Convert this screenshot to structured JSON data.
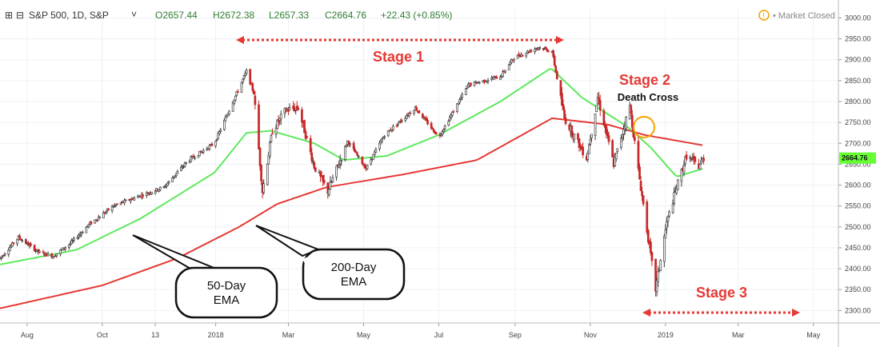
{
  "header": {
    "symbol": "S&P 500, 1D, S&P",
    "open": "O2657.44",
    "high": "H2672.38",
    "low": "L2657.33",
    "close": "C2664.76",
    "change": "+22.43 (+0.85%)",
    "market_status": "Market Closed"
  },
  "colors": {
    "up": "#3c3c3c",
    "down": "#c62828",
    "ema50": "#5ee85e",
    "ema200": "#e53935",
    "annotation": "#e53935",
    "last_price_badge": "#66ff33",
    "circle": "#f4a300"
  },
  "chart_data": {
    "type": "candlestick",
    "title": "S&P 500, 1D, S&P",
    "ylim": [
      2270,
      3020
    ],
    "yticks": [
      3000,
      2950,
      2900,
      2850,
      2800,
      2750,
      2700,
      2650,
      2600,
      2550,
      2500,
      2450,
      2400,
      2350,
      2300
    ],
    "ytick_labels": [
      "3000.00",
      "2950.00",
      "2900.00",
      "2850.00",
      "2800.00",
      "2750.00",
      "2700.00",
      "2650.00",
      "2600.00",
      "2550.00",
      "2500.00",
      "2450.00",
      "2400.00",
      "2350.00",
      "2300.00"
    ],
    "xtick_labels": [
      "Aug",
      "Oct",
      "13",
      "2018",
      "Mar",
      "May",
      "Jul",
      "Sep",
      "Nov",
      "2019",
      "Mar",
      "May"
    ],
    "xtick_dates": [
      "2017-08-01",
      "2017-10-01",
      "2017-11-13",
      "2018-01-01",
      "2018-03-01",
      "2018-05-01",
      "2018-07-01",
      "2018-09-01",
      "2018-11-01",
      "2019-01-01",
      "2019-03-01",
      "2019-05-01"
    ],
    "last_price": 2664.76,
    "last_price_label": "2664.76",
    "price_path": [
      [
        "2017-07-10",
        2425
      ],
      [
        "2017-07-25",
        2475
      ],
      [
        "2017-08-10",
        2440
      ],
      [
        "2017-08-22",
        2430
      ],
      [
        "2017-09-05",
        2460
      ],
      [
        "2017-09-20",
        2505
      ],
      [
        "2017-10-10",
        2550
      ],
      [
        "2017-11-01",
        2575
      ],
      [
        "2017-11-20",
        2595
      ],
      [
        "2017-12-10",
        2660
      ],
      [
        "2017-12-31",
        2700
      ],
      [
        "2018-01-15",
        2800
      ],
      [
        "2018-01-26",
        2872
      ],
      [
        "2018-02-01",
        2820
      ],
      [
        "2018-02-08",
        2585
      ],
      [
        "2018-02-16",
        2730
      ],
      [
        "2018-02-27",
        2780
      ],
      [
        "2018-03-09",
        2785
      ],
      [
        "2018-03-22",
        2645
      ],
      [
        "2018-04-02",
        2585
      ],
      [
        "2018-04-18",
        2705
      ],
      [
        "2018-05-03",
        2640
      ],
      [
        "2018-05-18",
        2720
      ],
      [
        "2018-06-12",
        2785
      ],
      [
        "2018-07-01",
        2715
      ],
      [
        "2018-07-25",
        2840
      ],
      [
        "2018-08-20",
        2860
      ],
      [
        "2018-08-31",
        2905
      ],
      [
        "2018-09-20",
        2930
      ],
      [
        "2018-10-01",
        2920
      ],
      [
        "2018-10-11",
        2760
      ],
      [
        "2018-10-29",
        2665
      ],
      [
        "2018-11-07",
        2810
      ],
      [
        "2018-11-20",
        2650
      ],
      [
        "2018-12-03",
        2790
      ],
      [
        "2018-12-10",
        2635
      ],
      [
        "2018-12-24",
        2350
      ],
      [
        "2019-01-02",
        2510
      ],
      [
        "2019-01-10",
        2595
      ],
      [
        "2019-01-18",
        2670
      ],
      [
        "2019-01-28",
        2645
      ],
      [
        "2019-02-01",
        2664.76
      ]
    ],
    "ema50": [
      [
        "2017-07-10",
        2410
      ],
      [
        "2017-09-10",
        2445
      ],
      [
        "2017-11-01",
        2520
      ],
      [
        "2017-12-31",
        2630
      ],
      [
        "2018-01-26",
        2725
      ],
      [
        "2018-02-15",
        2730
      ],
      [
        "2018-03-22",
        2700
      ],
      [
        "2018-04-15",
        2660
      ],
      [
        "2018-05-20",
        2670
      ],
      [
        "2018-07-01",
        2720
      ],
      [
        "2018-08-20",
        2800
      ],
      [
        "2018-09-30",
        2880
      ],
      [
        "2018-10-25",
        2810
      ],
      [
        "2018-12-01",
        2740
      ],
      [
        "2018-12-20",
        2690
      ],
      [
        "2019-01-10",
        2620
      ],
      [
        "2019-02-01",
        2640
      ]
    ],
    "ema200": [
      [
        "2017-07-10",
        2305
      ],
      [
        "2017-10-01",
        2360
      ],
      [
        "2017-12-01",
        2425
      ],
      [
        "2018-01-20",
        2500
      ],
      [
        "2018-02-20",
        2555
      ],
      [
        "2018-04-01",
        2595
      ],
      [
        "2018-06-01",
        2625
      ],
      [
        "2018-08-01",
        2660
      ],
      [
        "2018-10-01",
        2760
      ],
      [
        "2018-11-15",
        2745
      ],
      [
        "2018-12-15",
        2720
      ],
      [
        "2019-02-01",
        2695
      ]
    ],
    "annotations": [
      {
        "id": "stage1",
        "text": "Stage 1"
      },
      {
        "id": "stage2",
        "text": "Stage 2"
      },
      {
        "id": "death_cross",
        "text": "Death Cross"
      },
      {
        "id": "stage3",
        "text": "Stage 3"
      },
      {
        "id": "ema50_label",
        "lines": [
          "50-Day",
          "EMA"
        ]
      },
      {
        "id": "ema200_label",
        "lines": [
          "200-Day",
          "EMA"
        ]
      }
    ]
  }
}
